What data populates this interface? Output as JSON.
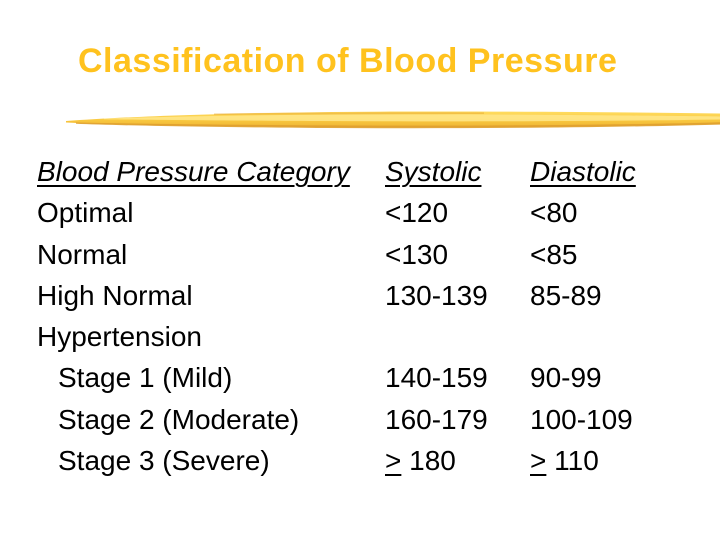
{
  "slide": {
    "title": "Classification of Blood Pressure",
    "title_color": "#FFC21E",
    "decoration": {
      "name": "gold-brush-stroke",
      "colors": [
        "#FFE27A",
        "#F9C83F",
        "#DFA02F"
      ]
    }
  },
  "table": {
    "headers": {
      "category": "Blood Pressure Category",
      "systolic": "Systolic",
      "diastolic": "Diastolic"
    },
    "rows": [
      {
        "category": "Optimal",
        "systolic": "<120",
        "diastolic": "<80",
        "indent": false,
        "gte_underline": false
      },
      {
        "category": "Normal",
        "systolic": "<130",
        "diastolic": "<85",
        "indent": false,
        "gte_underline": false
      },
      {
        "category": "High Normal",
        "systolic": "130-139",
        "diastolic": "85-89",
        "indent": false,
        "gte_underline": false
      },
      {
        "category": "Hypertension",
        "systolic": "",
        "diastolic": "",
        "indent": false,
        "gte_underline": false
      },
      {
        "category": "Stage 1 (Mild)",
        "systolic": "140-159",
        "diastolic": "90-99",
        "indent": true,
        "gte_underline": false
      },
      {
        "category": "Stage 2 (Moderate)",
        "systolic": "160-179",
        "diastolic": "100-109",
        "indent": true,
        "gte_underline": false
      },
      {
        "category": "Stage 3 (Severe)",
        "systolic": "> 180",
        "diastolic": "> 110",
        "indent": true,
        "gte_underline": true
      }
    ]
  }
}
